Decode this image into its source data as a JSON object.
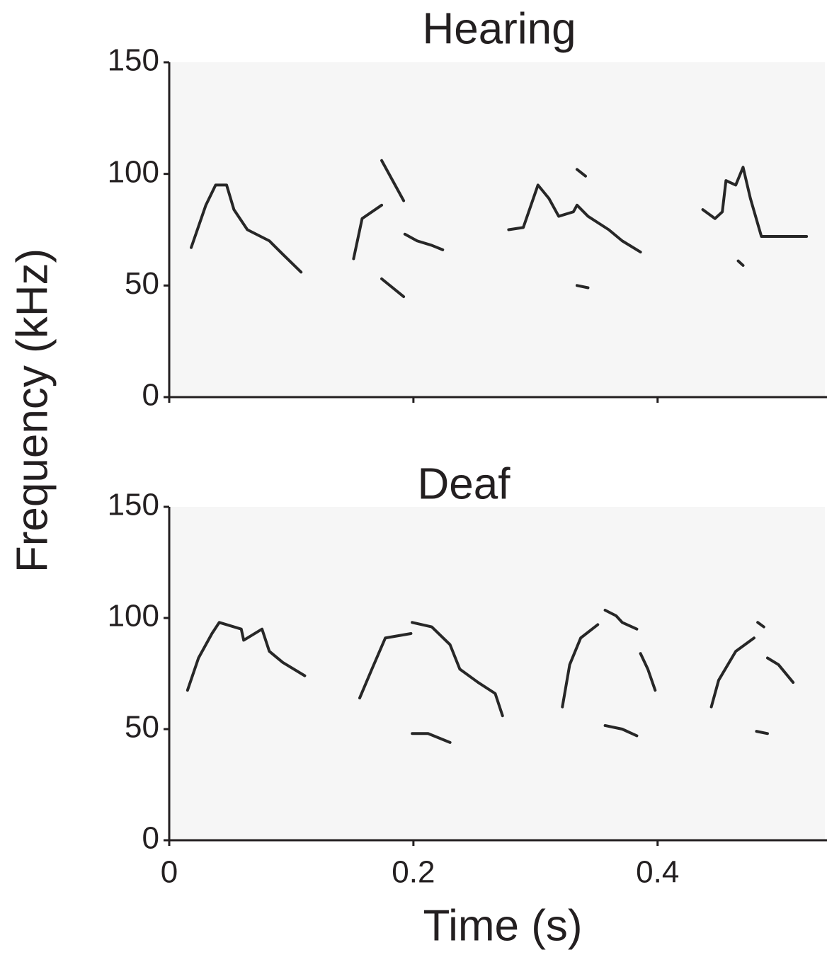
{
  "chart_data": [
    {
      "type": "line",
      "title": "Hearing",
      "ylabel": "Frequency (kHz)",
      "xlim": [
        0,
        0.537
      ],
      "ylim": [
        0,
        150
      ],
      "yticks": [
        0,
        50,
        100,
        150
      ],
      "series": [
        {
          "color": "#111111",
          "x": [
            0.018,
            0.03,
            0.038,
            0.047,
            0.053,
            0.064,
            0.082,
            0.093,
            0.108
          ],
          "values": [
            67,
            86,
            95,
            95,
            84,
            75,
            70,
            64,
            56
          ]
        },
        {
          "color": "#111111",
          "x": [
            0.151,
            0.158,
            0.174
          ],
          "values": [
            62,
            80,
            86
          ]
        },
        {
          "color": "#111111",
          "x": [
            0.174,
            0.183,
            0.192
          ],
          "values": [
            106,
            97,
            88
          ]
        },
        {
          "color": "#111111",
          "x": [
            0.193,
            0.203,
            0.215,
            0.224
          ],
          "values": [
            73,
            70,
            68,
            66
          ]
        },
        {
          "color": "#111111",
          "x": [
            0.174,
            0.192
          ],
          "values": [
            53,
            45
          ]
        },
        {
          "color": "#111111",
          "x": [
            0.278,
            0.29,
            0.302,
            0.311,
            0.319,
            0.331,
            0.334,
            0.343,
            0.36,
            0.371,
            0.386
          ],
          "values": [
            75,
            76,
            95,
            89,
            81,
            83,
            86,
            81,
            75,
            70,
            65
          ]
        },
        {
          "color": "#111111",
          "x": [
            0.334,
            0.341
          ],
          "values": [
            102,
            99
          ]
        },
        {
          "color": "#111111",
          "x": [
            0.334,
            0.343
          ],
          "values": [
            50,
            49
          ]
        },
        {
          "color": "#111111",
          "x": [
            0.437,
            0.447,
            0.453,
            0.456,
            0.464,
            0.47,
            0.476,
            0.485,
            0.499,
            0.522
          ],
          "values": [
            84,
            80,
            83,
            97,
            95,
            103,
            89,
            72,
            72,
            72
          ]
        },
        {
          "color": "#111111",
          "x": [
            0.466,
            0.47
          ],
          "values": [
            61,
            59
          ]
        }
      ]
    },
    {
      "type": "line",
      "title": "Deaf",
      "xlabel": "Time (s)",
      "xlim": [
        0,
        0.537
      ],
      "xticks": [
        0,
        0.2,
        0.4
      ],
      "ylim": [
        0,
        150
      ],
      "yticks": [
        0,
        50,
        100,
        150
      ],
      "series": [
        {
          "color": "#111111",
          "x": [
            0.015,
            0.024,
            0.035,
            0.041,
            0.059,
            0.061,
            0.076,
            0.082,
            0.093,
            0.111
          ],
          "values": [
            67.5,
            82,
            93,
            98,
            95,
            90,
            95,
            85,
            80,
            74
          ]
        },
        {
          "color": "#111111",
          "x": [
            0.156,
            0.166,
            0.177,
            0.198
          ],
          "values": [
            64,
            77,
            91,
            93
          ]
        },
        {
          "color": "#111111",
          "x": [
            0.199,
            0.215,
            0.23,
            0.238,
            0.253,
            0.267,
            0.273
          ],
          "values": [
            98,
            96,
            88,
            77,
            71,
            66,
            56
          ]
        },
        {
          "color": "#111111",
          "x": [
            0.199,
            0.212,
            0.23
          ],
          "values": [
            48,
            48,
            44
          ]
        },
        {
          "color": "#111111",
          "x": [
            0.322,
            0.328,
            0.337,
            0.351
          ],
          "values": [
            60,
            79,
            91,
            97
          ]
        },
        {
          "color": "#111111",
          "x": [
            0.357,
            0.366,
            0.371,
            0.383
          ],
          "values": [
            103.5,
            101,
            98,
            95
          ]
        },
        {
          "color": "#111111",
          "x": [
            0.386,
            0.392,
            0.398
          ],
          "values": [
            84,
            77,
            67.5
          ]
        },
        {
          "color": "#111111",
          "x": [
            0.357,
            0.371,
            0.383
          ],
          "values": [
            51.6,
            50,
            47
          ]
        },
        {
          "color": "#111111",
          "x": [
            0.444,
            0.45,
            0.464,
            0.479
          ],
          "values": [
            60,
            72,
            85,
            91
          ]
        },
        {
          "color": "#111111",
          "x": [
            0.482,
            0.487
          ],
          "values": [
            98,
            96
          ]
        },
        {
          "color": "#111111",
          "x": [
            0.49,
            0.499,
            0.511
          ],
          "values": [
            82,
            79,
            71
          ]
        },
        {
          "color": "#111111",
          "x": [
            0.481,
            0.49
          ],
          "values": [
            49,
            48
          ]
        }
      ]
    }
  ]
}
